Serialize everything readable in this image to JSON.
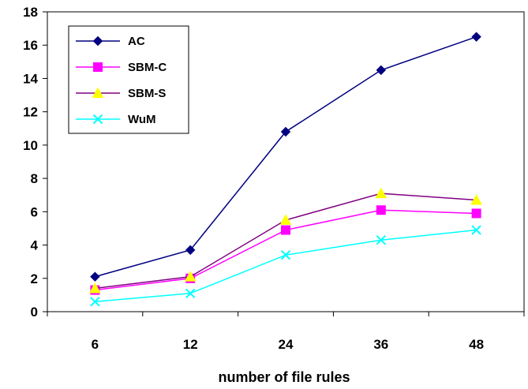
{
  "chart_data": {
    "type": "line",
    "title": "",
    "xlabel": "number of file rules",
    "ylabel": "",
    "categories": [
      "6",
      "12",
      "24",
      "36",
      "48"
    ],
    "ylim": [
      0,
      18
    ],
    "yticks": [
      0,
      2,
      4,
      6,
      8,
      10,
      12,
      14,
      16,
      18
    ],
    "grid": false,
    "legend_position": "top-left",
    "series": [
      {
        "name": "AC",
        "values": [
          2.1,
          3.7,
          10.8,
          14.5,
          16.5
        ],
        "line_color": "#000080",
        "marker_color": "#000080",
        "marker": "diamond"
      },
      {
        "name": "SBM-C",
        "values": [
          1.3,
          2.0,
          4.9,
          6.1,
          5.9
        ],
        "line_color": "#FF00FF",
        "marker_color": "#FF00FF",
        "marker": "square"
      },
      {
        "name": "SBM-S",
        "values": [
          1.4,
          2.1,
          5.5,
          7.1,
          6.7
        ],
        "line_color": "#800080",
        "marker_color": "#FFFF00",
        "marker": "triangle"
      },
      {
        "name": "WuM",
        "values": [
          0.6,
          1.1,
          3.4,
          4.3,
          4.9
        ],
        "line_color": "#00FFFF",
        "marker_color": "#00FFFF",
        "marker": "x"
      }
    ]
  }
}
